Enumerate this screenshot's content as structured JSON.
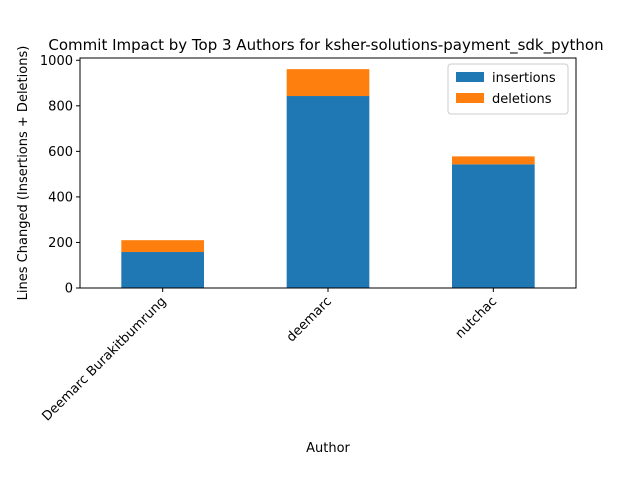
{
  "chart_data": {
    "type": "bar",
    "stacked": true,
    "title": "Commit Impact by Top 3 Authors for ksher-solutions-payment_sdk_python",
    "xlabel": "Author",
    "ylabel": "Lines Changed (Insertions + Deletions)",
    "categories": [
      "Deemarc Burakitbumrung",
      "deemarc",
      "nutchac"
    ],
    "series": [
      {
        "name": "insertions",
        "color": "#1f77b4",
        "values": [
          158,
          843,
          543
        ]
      },
      {
        "name": "deletions",
        "color": "#ff7f0e",
        "values": [
          52,
          118,
          35
        ]
      }
    ],
    "ylim": [
      0,
      1010
    ],
    "yticks": [
      0,
      200,
      400,
      600,
      800,
      1000
    ],
    "grid": false,
    "legend_position": "top-right"
  }
}
